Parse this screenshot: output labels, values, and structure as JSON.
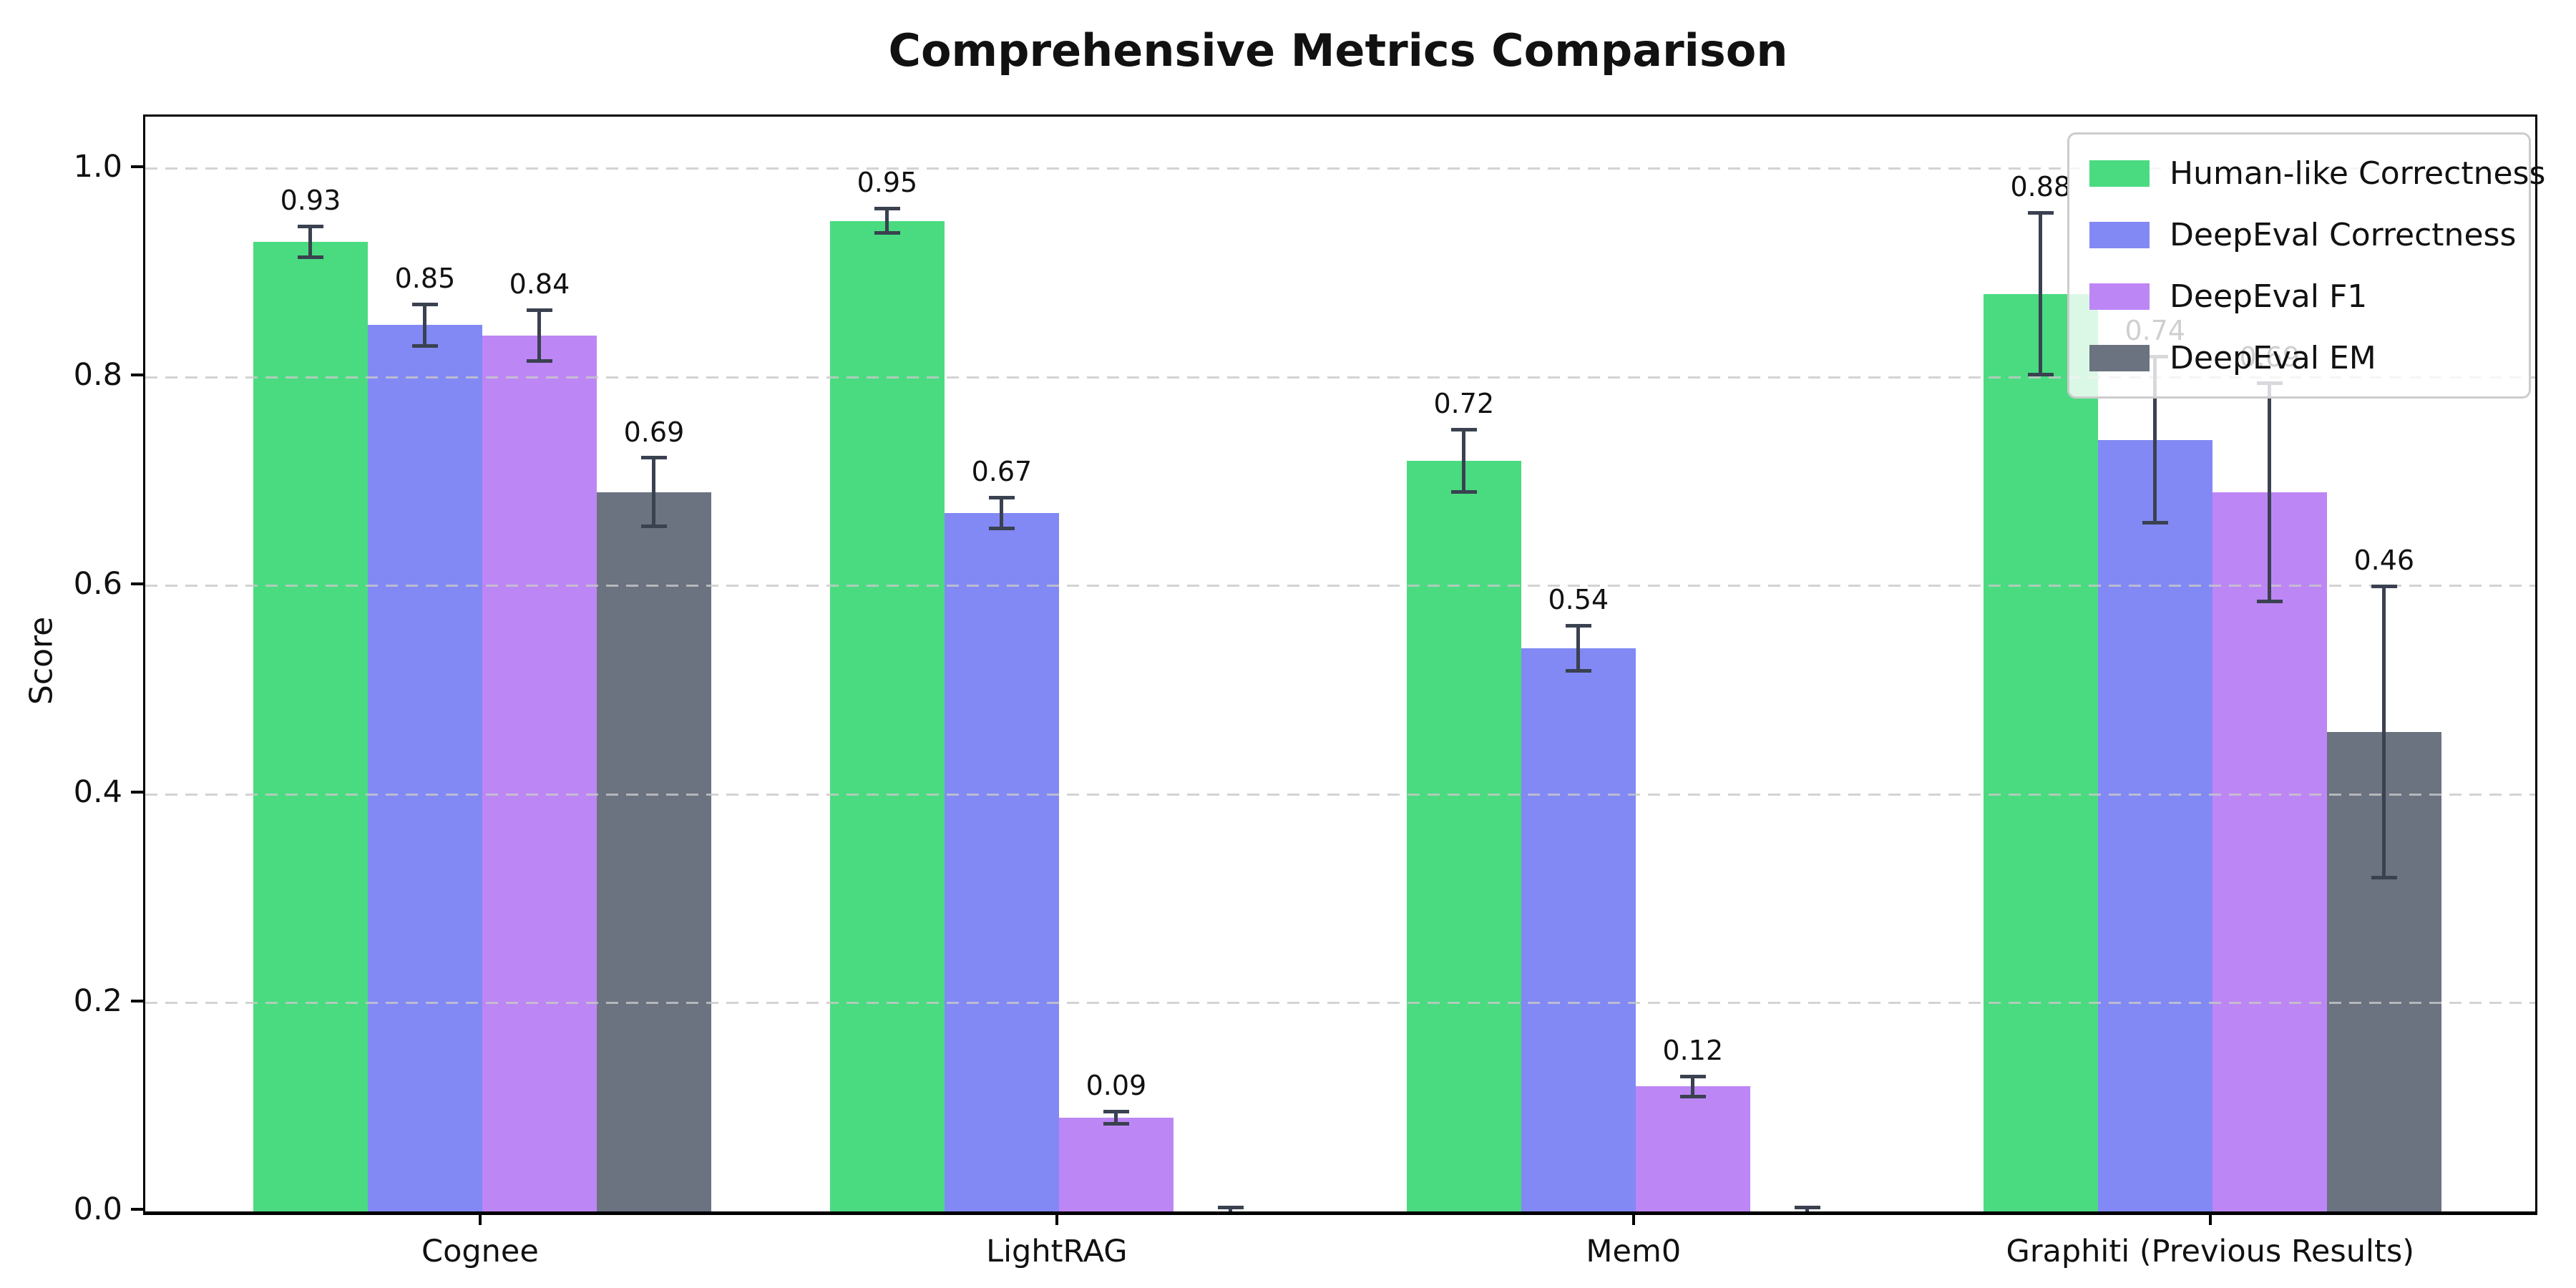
{
  "chart_data": {
    "type": "bar",
    "title": "Comprehensive Metrics Comparison",
    "ylabel": "Score",
    "xlabel": "",
    "categories": [
      "Cognee",
      "LightRAG",
      "Mem0",
      "Graphiti (Previous Results)"
    ],
    "series": [
      {
        "name": "Human-like Correctness",
        "color": "#4adb81",
        "values": [
          0.93,
          0.95,
          0.72,
          0.88
        ],
        "errors": [
          0.015,
          0.012,
          0.03,
          0.078
        ],
        "labels": [
          "0.93",
          "0.95",
          "0.72",
          "0.88"
        ]
      },
      {
        "name": "DeepEval Correctness",
        "color": "#8289f4",
        "values": [
          0.85,
          0.67,
          0.54,
          0.74
        ],
        "errors": [
          0.02,
          0.015,
          0.022,
          0.08
        ],
        "labels": [
          "0.85",
          "0.67",
          "0.54",
          "0.74"
        ]
      },
      {
        "name": "DeepEval F1",
        "color": "#bd86f5",
        "values": [
          0.84,
          0.09,
          0.12,
          0.69
        ],
        "errors": [
          0.025,
          0.006,
          0.01,
          0.105
        ],
        "labels": [
          "0.84",
          "0.09",
          "0.12",
          "0.69"
        ]
      },
      {
        "name": "DeepEval EM",
        "color": "#6b7280",
        "values": [
          0.69,
          0.0,
          0.0,
          0.46
        ],
        "errors": [
          0.033,
          0.004,
          0.004,
          0.14
        ],
        "labels": [
          "0.69",
          "",
          "",
          "0.46"
        ]
      }
    ],
    "ylim": [
      0,
      1.05
    ],
    "yticks": [
      "0.0",
      "0.2",
      "0.4",
      "0.6",
      "0.8",
      "1.0"
    ],
    "ytick_values": [
      0.0,
      0.2,
      0.4,
      0.6,
      0.8,
      1.0
    ],
    "grid": "dashed-horizontal-above-bars",
    "legend_position": "upper-right",
    "style": {
      "errorbar_color": "#3a4150",
      "grid_color": "#d4d4d4",
      "spine_color": "#000000",
      "legend_border_color": "#cccccc"
    }
  }
}
